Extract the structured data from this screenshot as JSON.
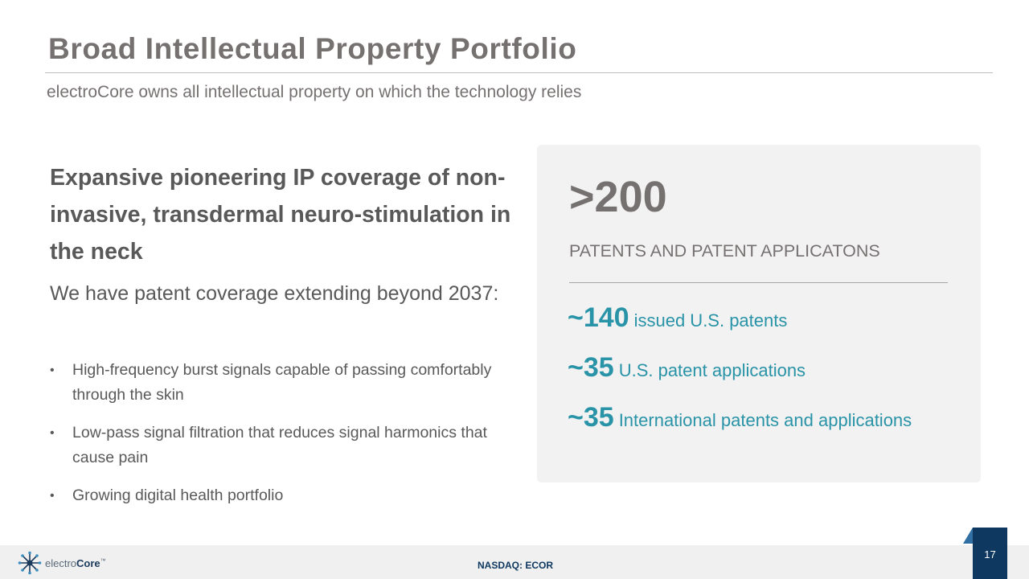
{
  "slide": {
    "title": "Broad Intellectual Property Portfolio",
    "subtitle": "electroCore owns all intellectual property on which the technology relies"
  },
  "left": {
    "headline": "Expansive pioneering IP coverage of non-invasive, transdermal neuro-stimulation in the neck",
    "lead": "We have patent coverage extending beyond 2037:",
    "bullets": [
      "High-frequency burst signals capable of passing comfortably through the skin",
      "Low-pass signal filtration that reduces signal harmonics that cause pain",
      "Growing digital health portfolio"
    ],
    "bullet_glyph": "•"
  },
  "panel": {
    "big_number": ">200",
    "big_caption": "PATENTS AND PATENT APPLICATONS",
    "stats": [
      {
        "number": "~140",
        "label": "issued U.S. patents"
      },
      {
        "number": "~35",
        "label": "U.S. patent applications"
      },
      {
        "number": "~35",
        "label": "International patents and applications"
      }
    ]
  },
  "footer": {
    "logo_light": "electro",
    "logo_bold": "Core",
    "logo_mark": "™",
    "ticker": "NASDAQ: ECOR",
    "page_number": "17"
  },
  "colors": {
    "accent": "#2993a7",
    "title_gray": "#767171",
    "body_gray": "#595959",
    "panel_bg": "#f2f2f2",
    "navy": "#0f3860"
  }
}
